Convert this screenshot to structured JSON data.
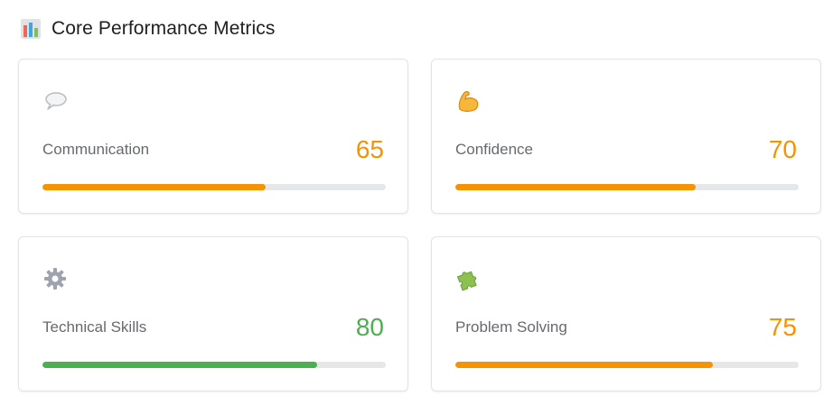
{
  "header": {
    "title": "Core Performance Metrics",
    "icon": "bar-chart-icon"
  },
  "metrics": [
    {
      "label": "Communication",
      "value": "65",
      "fraction": 0.65,
      "color": "#f59300",
      "icon": "speech-bubble-icon"
    },
    {
      "label": "Confidence",
      "value": "70",
      "fraction": 0.7,
      "color": "#f59300",
      "icon": "flexed-biceps-icon"
    },
    {
      "label": "Technical Skills",
      "value": "80",
      "fraction": 0.8,
      "color": "#4caf50",
      "icon": "gear-icon"
    },
    {
      "label": "Problem Solving",
      "value": "75",
      "fraction": 0.75,
      "color": "#f59300",
      "icon": "puzzle-piece-icon"
    }
  ]
}
